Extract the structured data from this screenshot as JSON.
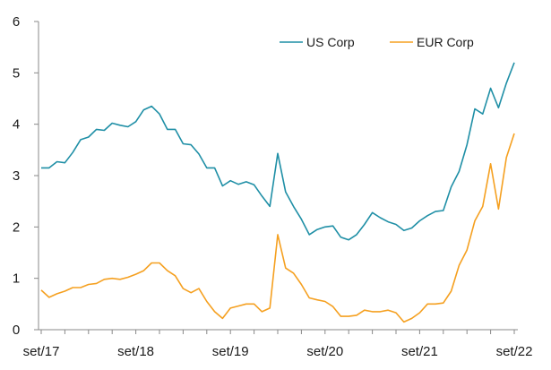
{
  "chart_data": {
    "type": "line",
    "title": "",
    "xlabel": "",
    "ylabel": "",
    "ylim": [
      0,
      6
    ],
    "yticks": [
      0,
      1,
      2,
      3,
      4,
      5,
      6
    ],
    "x_tick_labels": [
      "set/17",
      "set/18",
      "set/19",
      "set/20",
      "set/21",
      "set/22"
    ],
    "x_tick_positions": [
      0,
      12,
      24,
      36,
      48,
      60
    ],
    "x": [
      0,
      1,
      2,
      3,
      4,
      5,
      6,
      7,
      8,
      9,
      10,
      11,
      12,
      13,
      14,
      15,
      16,
      17,
      18,
      19,
      20,
      21,
      22,
      23,
      24,
      25,
      26,
      27,
      28,
      29,
      30,
      31,
      32,
      33,
      34,
      35,
      36,
      37,
      38,
      39,
      40,
      41,
      42,
      43,
      44,
      45,
      46,
      47,
      48,
      49,
      50,
      51,
      52,
      53,
      54,
      55,
      56,
      57,
      58,
      59,
      60
    ],
    "grid": false,
    "legend_position": "top-right",
    "series": [
      {
        "name": "US Corp",
        "color": "#1f8fa6",
        "values": [
          3.15,
          3.15,
          3.27,
          3.25,
          3.45,
          3.7,
          3.75,
          3.9,
          3.88,
          4.02,
          3.98,
          3.95,
          4.05,
          4.28,
          4.35,
          4.2,
          3.9,
          3.9,
          3.62,
          3.6,
          3.42,
          3.15,
          3.15,
          2.8,
          2.9,
          2.83,
          2.88,
          2.82,
          2.6,
          2.4,
          3.43,
          2.68,
          2.4,
          2.15,
          1.85,
          1.95,
          2.0,
          2.02,
          1.8,
          1.75,
          1.85,
          2.05,
          2.28,
          2.18,
          2.1,
          2.05,
          1.93,
          1.98,
          2.12,
          2.22,
          2.3,
          2.32,
          2.78,
          3.08,
          3.6,
          4.3,
          4.2,
          4.7,
          4.32,
          4.8,
          5.2
        ]
      },
      {
        "name": "EUR Corp",
        "color": "#f5a020",
        "values": [
          0.77,
          0.63,
          0.7,
          0.75,
          0.82,
          0.82,
          0.88,
          0.9,
          0.98,
          1.0,
          0.98,
          1.02,
          1.08,
          1.15,
          1.3,
          1.3,
          1.15,
          1.05,
          0.8,
          0.72,
          0.8,
          0.55,
          0.35,
          0.22,
          0.42,
          0.46,
          0.5,
          0.5,
          0.35,
          0.42,
          1.85,
          1.2,
          1.1,
          0.88,
          0.62,
          0.58,
          0.55,
          0.45,
          0.26,
          0.26,
          0.28,
          0.38,
          0.35,
          0.35,
          0.38,
          0.33,
          0.15,
          0.22,
          0.33,
          0.5,
          0.5,
          0.52,
          0.75,
          1.25,
          1.55,
          2.12,
          2.4,
          3.23,
          2.35,
          3.35,
          3.82
        ]
      }
    ]
  }
}
